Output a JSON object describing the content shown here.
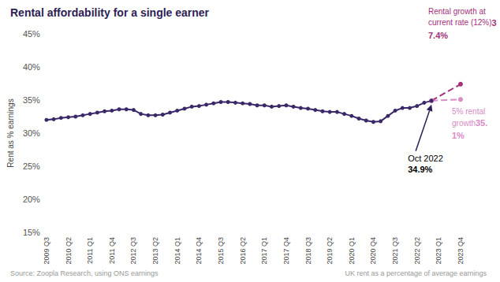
{
  "chart_data": {
    "type": "line",
    "title": "Rental affordability for a single earner",
    "y_label": "Rent as % earnings",
    "source": "Source: Zoopla Research, using ONS earnings",
    "note": "UK rent as a percentage of average earnings",
    "categories": [
      "2009 Q3",
      null,
      null,
      "2010 Q2",
      null,
      null,
      "2011 Q1",
      null,
      null,
      "2011 Q4",
      null,
      null,
      "2012 Q3",
      null,
      null,
      "2013 Q2",
      null,
      null,
      "2014 Q1",
      null,
      null,
      "2014 Q4",
      null,
      null,
      "2015 Q3",
      null,
      null,
      "2016 Q2",
      null,
      null,
      "2017 Q1",
      null,
      null,
      "2017 Q4",
      null,
      null,
      "2018 Q3",
      null,
      null,
      "2019 Q2",
      null,
      null,
      "2020 Q1",
      null,
      null,
      "2020 Q4",
      null,
      null,
      "2021 Q3",
      null,
      null,
      "2022 Q2",
      null,
      null,
      "2023 Q1",
      null,
      null,
      "2023 Q4"
    ],
    "series": [
      {
        "color": "#3b2869",
        "marker": "circle",
        "line_style": "solid",
        "values": [
          32.0,
          32.1,
          32.3,
          32.4,
          32.5,
          32.7,
          32.9,
          33.1,
          33.3,
          33.4,
          33.6,
          33.6,
          33.5,
          32.9,
          32.7,
          32.7,
          32.8,
          33.1,
          33.4,
          33.7,
          34.0,
          34.1,
          34.3,
          34.5,
          34.7,
          34.7,
          34.6,
          34.5,
          34.4,
          34.2,
          34.2,
          34.0,
          34.1,
          34.2,
          34.0,
          33.8,
          33.7,
          33.5,
          33.3,
          33.2,
          33.2,
          32.9,
          32.6,
          32.2,
          31.9,
          31.7,
          31.8,
          32.6,
          33.4,
          33.8,
          33.8,
          34.1,
          34.6,
          34.9,
          null,
          null,
          null,
          null
        ]
      },
      {
        "name": "Rental growth at current rate (12%)",
        "color": "#a3307a",
        "marker": "circle",
        "line_style": "dashed",
        "values": [
          null,
          null,
          null,
          null,
          null,
          null,
          null,
          null,
          null,
          null,
          null,
          null,
          null,
          null,
          null,
          null,
          null,
          null,
          null,
          null,
          null,
          null,
          null,
          null,
          null,
          null,
          null,
          null,
          null,
          null,
          null,
          null,
          null,
          null,
          null,
          null,
          null,
          null,
          null,
          null,
          null,
          null,
          null,
          null,
          null,
          null,
          null,
          null,
          null,
          null,
          null,
          null,
          null,
          34.9,
          null,
          null,
          null,
          37.4
        ],
        "value_labels": [
          null,
          null,
          null,
          null,
          null,
          null,
          null,
          null,
          null,
          null,
          null,
          null,
          null,
          null,
          null,
          null,
          null,
          null,
          null,
          null,
          null,
          null,
          null,
          null,
          null,
          null,
          null,
          null,
          null,
          null,
          null,
          null,
          null,
          null,
          null,
          null,
          null,
          null,
          null,
          null,
          null,
          null,
          null,
          null,
          null,
          null,
          null,
          null,
          null,
          null,
          null,
          null,
          null,
          null,
          null,
          null,
          null,
          "37.4%"
        ]
      },
      {
        "name": "5% rental growth",
        "color": "#d88bc4",
        "marker": "circle",
        "line_style": "dashed",
        "values": [
          null,
          null,
          null,
          null,
          null,
          null,
          null,
          null,
          null,
          null,
          null,
          null,
          null,
          null,
          null,
          null,
          null,
          null,
          null,
          null,
          null,
          null,
          null,
          null,
          null,
          null,
          null,
          null,
          null,
          null,
          null,
          null,
          null,
          null,
          null,
          null,
          null,
          null,
          null,
          null,
          null,
          null,
          null,
          null,
          null,
          null,
          null,
          null,
          null,
          null,
          null,
          null,
          null,
          34.9,
          null,
          null,
          null,
          35.1
        ],
        "value_labels": [
          null,
          null,
          null,
          null,
          null,
          null,
          null,
          null,
          null,
          null,
          null,
          null,
          null,
          null,
          null,
          null,
          null,
          null,
          null,
          null,
          null,
          null,
          null,
          null,
          null,
          null,
          null,
          null,
          null,
          null,
          null,
          null,
          null,
          null,
          null,
          null,
          null,
          null,
          null,
          null,
          null,
          null,
          null,
          null,
          null,
          null,
          null,
          null,
          null,
          null,
          null,
          null,
          null,
          null,
          null,
          null,
          null,
          "35.1%"
        ]
      }
    ],
    "annotations": [
      {
        "text": "Oct 2022",
        "value": 34.9,
        "value_label": "34.9%"
      }
    ],
    "ylim": [
      15,
      45
    ],
    "yticks": [
      {
        "value": 15,
        "label": "15%"
      },
      {
        "value": 20,
        "label": "20%"
      },
      {
        "value": 25,
        "label": "25%"
      },
      {
        "value": 30,
        "label": "30%"
      },
      {
        "value": 35,
        "label": "35%"
      },
      {
        "value": 40,
        "label": "40%"
      },
      {
        "value": 45,
        "label": "45%"
      }
    ],
    "grid": false
  }
}
